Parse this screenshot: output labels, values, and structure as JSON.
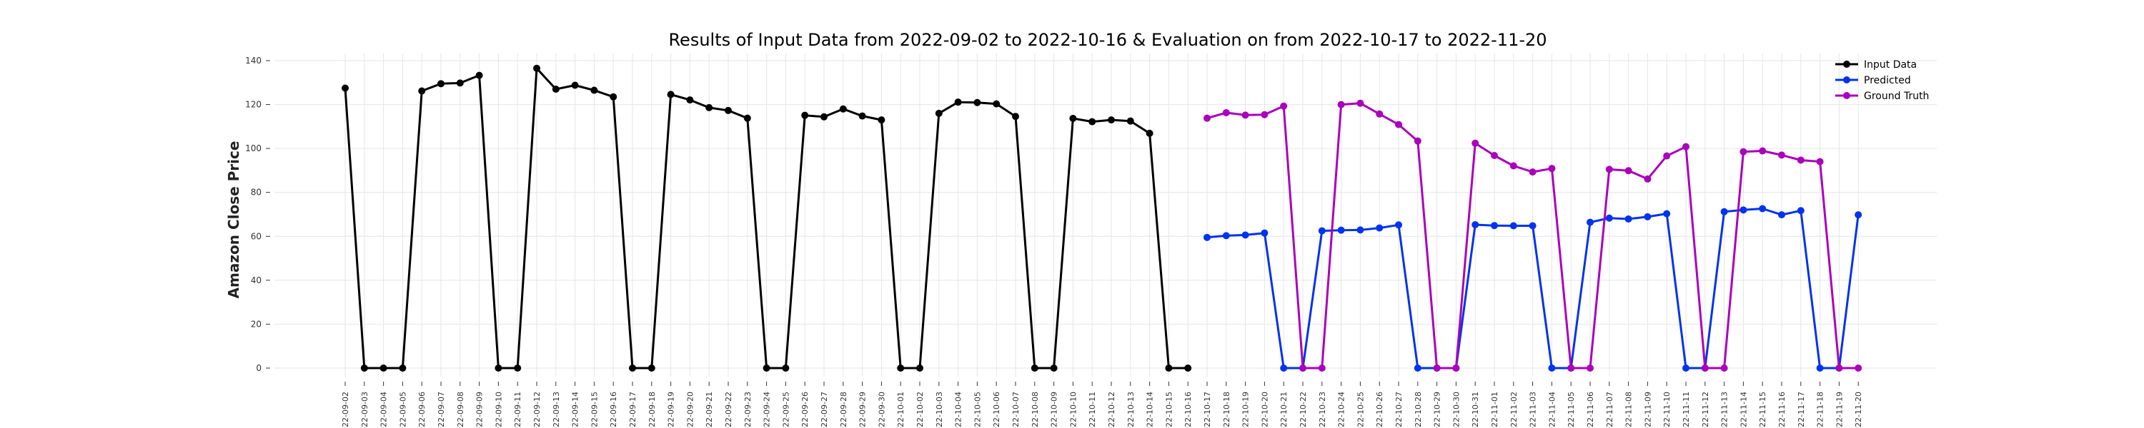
{
  "chart_data": {
    "type": "line",
    "title": "Results of Input Data from 2022-09-02 to 2022-10-16 & Evaluation on from 2022-10-17 to 2022-11-20",
    "xlabel": "",
    "ylabel": "Amazon Close Price",
    "ylim": [
      -5,
      143
    ],
    "yticks": [
      0,
      20,
      40,
      60,
      80,
      100,
      120,
      140
    ],
    "grid": true,
    "legend_position": "top-right",
    "categories": [
      "2022-09-02",
      "2022-09-03",
      "2022-09-04",
      "2022-09-05",
      "2022-09-06",
      "2022-09-07",
      "2022-09-08",
      "2022-09-09",
      "2022-09-10",
      "2022-09-11",
      "2022-09-12",
      "2022-09-13",
      "2022-09-14",
      "2022-09-15",
      "2022-09-16",
      "2022-09-17",
      "2022-09-18",
      "2022-09-19",
      "2022-09-20",
      "2022-09-21",
      "2022-09-22",
      "2022-09-23",
      "2022-09-24",
      "2022-09-25",
      "2022-09-26",
      "2022-09-27",
      "2022-09-28",
      "2022-09-29",
      "2022-09-30",
      "2022-10-01",
      "2022-10-02",
      "2022-10-03",
      "2022-10-04",
      "2022-10-05",
      "2022-10-06",
      "2022-10-07",
      "2022-10-08",
      "2022-10-09",
      "2022-10-10",
      "2022-10-11",
      "2022-10-12",
      "2022-10-13",
      "2022-10-14",
      "2022-10-15",
      "2022-10-16",
      "2022-10-17",
      "2022-10-18",
      "2022-10-19",
      "2022-10-20",
      "2022-10-21",
      "2022-10-22",
      "2022-10-23",
      "2022-10-24",
      "2022-10-25",
      "2022-10-26",
      "2022-10-27",
      "2022-10-28",
      "2022-10-29",
      "2022-10-30",
      "2022-10-31",
      "2022-11-01",
      "2022-11-02",
      "2022-11-03",
      "2022-11-04",
      "2022-11-05",
      "2022-11-06",
      "2022-11-07",
      "2022-11-08",
      "2022-11-09",
      "2022-11-10",
      "2022-11-11",
      "2022-11-12",
      "2022-11-13",
      "2022-11-14",
      "2022-11-15",
      "2022-11-16",
      "2022-11-17",
      "2022-11-18",
      "2022-11-19",
      "2022-11-20"
    ],
    "tick_labels": [
      "2022-09-02",
      "2022-09-03",
      "2022-09-04",
      "2022-09-05",
      "2022-09-06",
      "2022-09-07",
      "2022-09-08",
      "2022-09-09",
      "2022-09-10",
      "2022-09-11",
      "2022-09-12",
      "2022-09-13",
      "2022-09-14",
      "2022-09-15",
      "2022-09-16",
      "2022-09-17",
      "2022-09-18",
      "2022-09-19",
      "2022-09-20",
      "2022-09-21",
      "2022-09-22",
      "2022-09-23",
      "2022-09-24",
      "2022-09-25",
      "2022-09-26",
      "2022-09-27",
      "2022-09-28",
      "2022-09-29",
      "2022-09-30",
      "2022-10-01",
      "2022-10-02",
      "2022-10-03",
      "2022-10-04",
      "2022-10-05",
      "2022-10-06",
      "2022-10-07",
      "2022-10-08",
      "2022-10-09",
      "2022-10-10",
      "2022-10-11",
      "2022-10-12",
      "2022-10-13",
      "2022-10-14",
      "2022-10-15",
      "2022-10-16",
      "2022-10-17",
      "2022-10-18",
      "2022-10-19",
      "2022-10-20",
      "2022-10-21",
      "2022-10-22",
      "2022-10-23",
      "2022-10-24",
      "2022-10-25",
      "2022-10-26",
      "2022-10-27",
      "2022-10-28",
      "2022-10-29",
      "2022-10-30",
      "2022-10-31",
      "2022-11-01",
      "2022-11-02",
      "2022-11-03",
      "2022-11-04",
      "2022-11-05",
      "2022-11-06",
      "2022-11-07",
      "2022-11-08",
      "2022-11-09",
      "2022-11-10",
      "2022-11-11",
      "2022-11-12",
      "2022-11-13",
      "2022-11-14",
      "2022-11-15",
      "2022-11-16",
      "2022-11-17",
      "2022-11-18",
      "2022-11-19",
      "2022-11-20"
    ],
    "series": [
      {
        "name": "Input Data",
        "color": "#000000",
        "x": [
          "2022-09-02",
          "2022-09-03",
          "2022-09-04",
          "2022-09-05",
          "2022-09-06",
          "2022-09-07",
          "2022-09-08",
          "2022-09-09",
          "2022-09-10",
          "2022-09-11",
          "2022-09-12",
          "2022-09-13",
          "2022-09-14",
          "2022-09-15",
          "2022-09-16",
          "2022-09-17",
          "2022-09-18",
          "2022-09-19",
          "2022-09-20",
          "2022-09-21",
          "2022-09-22",
          "2022-09-23",
          "2022-09-24",
          "2022-09-25",
          "2022-09-26",
          "2022-09-27",
          "2022-09-28",
          "2022-09-29",
          "2022-09-30",
          "2022-10-01",
          "2022-10-02",
          "2022-10-03",
          "2022-10-04",
          "2022-10-05",
          "2022-10-06",
          "2022-10-07",
          "2022-10-08",
          "2022-10-09",
          "2022-10-10",
          "2022-10-11",
          "2022-10-12",
          "2022-10-13",
          "2022-10-14",
          "2022-10-15",
          "2022-10-16"
        ],
        "values": [
          127.5,
          0,
          0,
          0,
          126.2,
          129.5,
          129.8,
          133.3,
          0,
          0,
          136.5,
          127.0,
          128.8,
          126.5,
          123.5,
          0,
          0,
          124.6,
          122.1,
          118.6,
          117.3,
          113.8,
          0,
          0,
          115.1,
          114.4,
          118.0,
          114.8,
          113.0,
          0,
          0,
          116.0,
          121.1,
          120.9,
          120.3,
          114.6,
          0,
          0,
          113.7,
          112.2,
          113.0,
          112.5,
          106.9,
          0,
          0
        ]
      },
      {
        "name": "Predicted",
        "color": "#0033ee",
        "x": [
          "2022-10-17",
          "2022-10-18",
          "2022-10-19",
          "2022-10-20",
          "2022-10-21",
          "2022-10-22",
          "2022-10-23",
          "2022-10-24",
          "2022-10-25",
          "2022-10-26",
          "2022-10-27",
          "2022-10-28",
          "2022-10-29",
          "2022-10-30",
          "2022-10-31",
          "2022-11-01",
          "2022-11-02",
          "2022-11-03",
          "2022-11-04",
          "2022-11-05",
          "2022-11-06",
          "2022-11-07",
          "2022-11-08",
          "2022-11-09",
          "2022-11-10",
          "2022-11-11",
          "2022-11-12",
          "2022-11-13",
          "2022-11-14",
          "2022-11-15",
          "2022-11-16",
          "2022-11-17",
          "2022-11-18",
          "2022-11-19",
          "2022-11-20"
        ],
        "values": [
          59.5,
          60.3,
          60.6,
          61.5,
          0,
          0,
          62.5,
          62.8,
          62.9,
          63.8,
          65.2,
          0,
          0,
          0,
          65.3,
          64.9,
          64.8,
          64.8,
          0,
          0,
          66.4,
          68.3,
          67.9,
          68.9,
          70.3,
          0,
          0,
          71.2,
          72.0,
          72.6,
          69.8,
          71.7,
          0,
          0,
          69.8
        ]
      },
      {
        "name": "Ground Truth",
        "color": "#aa00bb",
        "x": [
          "2022-10-17",
          "2022-10-18",
          "2022-10-19",
          "2022-10-20",
          "2022-10-21",
          "2022-10-22",
          "2022-10-23",
          "2022-10-24",
          "2022-10-25",
          "2022-10-26",
          "2022-10-27",
          "2022-10-28",
          "2022-10-29",
          "2022-10-30",
          "2022-10-31",
          "2022-11-01",
          "2022-11-02",
          "2022-11-03",
          "2022-11-04",
          "2022-11-05",
          "2022-11-06",
          "2022-11-07",
          "2022-11-08",
          "2022-11-09",
          "2022-11-10",
          "2022-11-11",
          "2022-11-12",
          "2022-11-13",
          "2022-11-14",
          "2022-11-15",
          "2022-11-16",
          "2022-11-17",
          "2022-11-18",
          "2022-11-19",
          "2022-11-20"
        ],
        "values": [
          113.8,
          116.3,
          115.2,
          115.4,
          119.3,
          0,
          0,
          120.0,
          120.6,
          115.7,
          110.9,
          103.4,
          0,
          0,
          102.4,
          96.8,
          92.1,
          89.3,
          90.9,
          0,
          0,
          90.5,
          89.9,
          86.1,
          96.6,
          100.8,
          0,
          0,
          98.5,
          98.9,
          97.0,
          94.7,
          94.0,
          0,
          0
        ]
      }
    ]
  }
}
